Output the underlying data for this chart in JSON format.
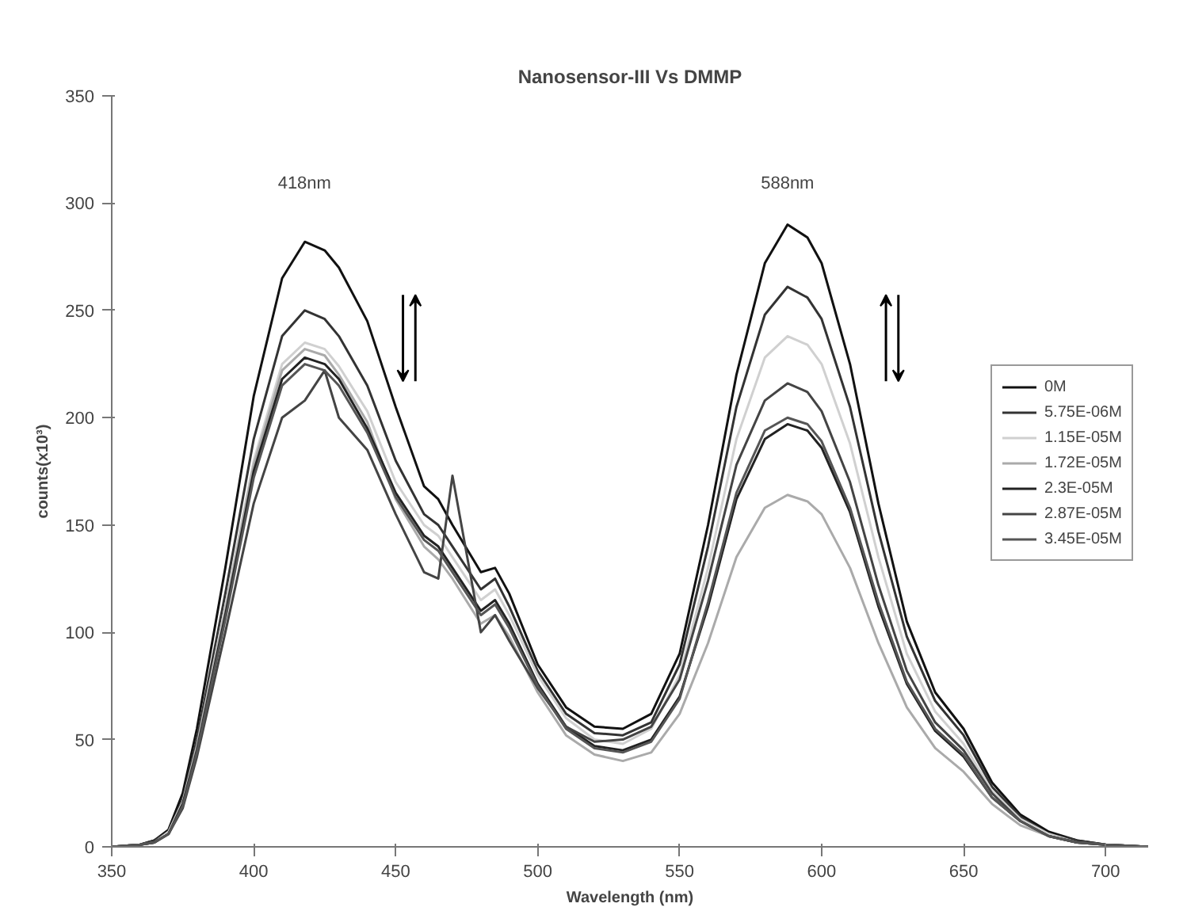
{
  "chart_data": {
    "type": "line",
    "title": "Nanosensor-III Vs DMMP",
    "xlabel": "Wavelength (nm)",
    "ylabel": "counts(x10³)",
    "x": [
      350,
      360,
      365,
      370,
      375,
      380,
      390,
      400,
      410,
      418,
      425,
      430,
      440,
      450,
      460,
      465,
      470,
      480,
      485,
      490,
      500,
      510,
      520,
      530,
      540,
      550,
      560,
      570,
      580,
      588,
      595,
      600,
      610,
      620,
      630,
      640,
      650,
      660,
      670,
      680,
      690,
      700,
      715
    ],
    "series": [
      {
        "name": "0M",
        "color": "#111111",
        "values": [
          0,
          1,
          3,
          8,
          25,
          55,
          130,
          210,
          265,
          282,
          278,
          270,
          245,
          205,
          168,
          162,
          150,
          128,
          130,
          118,
          85,
          65,
          56,
          55,
          62,
          90,
          150,
          220,
          272,
          290,
          284,
          272,
          225,
          160,
          105,
          72,
          55,
          30,
          15,
          7,
          3,
          1,
          0
        ]
      },
      {
        "name": "5.75E-06M",
        "color": "#333333",
        "values": [
          0,
          1,
          3,
          7,
          22,
          50,
          118,
          190,
          238,
          250,
          246,
          238,
          215,
          180,
          155,
          150,
          140,
          120,
          125,
          112,
          82,
          62,
          53,
          52,
          58,
          85,
          140,
          205,
          248,
          261,
          256,
          246,
          205,
          147,
          98,
          68,
          52,
          28,
          14,
          6,
          3,
          1,
          0
        ]
      },
      {
        "name": "1.15E-05M",
        "color": "#d0d0d0",
        "values": [
          0,
          1,
          2,
          7,
          21,
          47,
          112,
          180,
          225,
          235,
          232,
          224,
          203,
          170,
          150,
          145,
          135,
          115,
          120,
          108,
          80,
          60,
          50,
          48,
          55,
          80,
          130,
          190,
          228,
          238,
          234,
          225,
          188,
          135,
          90,
          63,
          48,
          26,
          13,
          6,
          2,
          1,
          0
        ]
      },
      {
        "name": "1.72E-05M",
        "color": "#aaaaaa",
        "values": [
          0,
          1,
          2,
          6,
          20,
          46,
          110,
          178,
          222,
          232,
          229,
          220,
          198,
          162,
          140,
          134,
          125,
          104,
          108,
          98,
          72,
          52,
          43,
          40,
          44,
          62,
          95,
          135,
          158,
          164,
          161,
          155,
          130,
          95,
          65,
          46,
          35,
          20,
          10,
          5,
          2,
          1,
          0
        ]
      },
      {
        "name": "2.3E-05M",
        "color": "#222222",
        "values": [
          0,
          1,
          2,
          6,
          20,
          45,
          108,
          175,
          218,
          228,
          225,
          218,
          195,
          165,
          145,
          140,
          130,
          110,
          115,
          104,
          76,
          56,
          47,
          45,
          50,
          70,
          112,
          162,
          190,
          197,
          194,
          186,
          156,
          112,
          76,
          54,
          42,
          23,
          12,
          5,
          2,
          1,
          0
        ]
      },
      {
        "name": "2.87E-05M",
        "color": "#444444",
        "values": [
          0,
          1,
          2,
          6,
          18,
          42,
          100,
          160,
          200,
          208,
          222,
          200,
          185,
          155,
          128,
          125,
          173,
          100,
          108,
          96,
          74,
          56,
          49,
          50,
          56,
          78,
          124,
          178,
          208,
          216,
          212,
          203,
          170,
          122,
          82,
          58,
          45,
          25,
          12,
          5,
          2,
          1,
          0
        ]
      },
      {
        "name": "3.45E-05M",
        "color": "#555555",
        "values": [
          0,
          1,
          2,
          6,
          19,
          44,
          106,
          172,
          215,
          225,
          222,
          215,
          193,
          163,
          143,
          138,
          128,
          108,
          113,
          102,
          75,
          55,
          46,
          44,
          49,
          69,
          114,
          165,
          194,
          200,
          197,
          189,
          158,
          114,
          77,
          55,
          43,
          23,
          12,
          5,
          2,
          1,
          0
        ]
      }
    ],
    "annotations": [
      "418nm",
      "588nm"
    ],
    "xlim": [
      350,
      715
    ],
    "ylim": [
      0,
      350
    ],
    "xticks": [
      350,
      400,
      450,
      500,
      550,
      600,
      650,
      700
    ],
    "yticks": [
      0,
      50,
      100,
      150,
      200,
      250,
      300,
      350
    ],
    "grid": false,
    "legend": "right",
    "marker": "none",
    "line_style": "solid"
  }
}
